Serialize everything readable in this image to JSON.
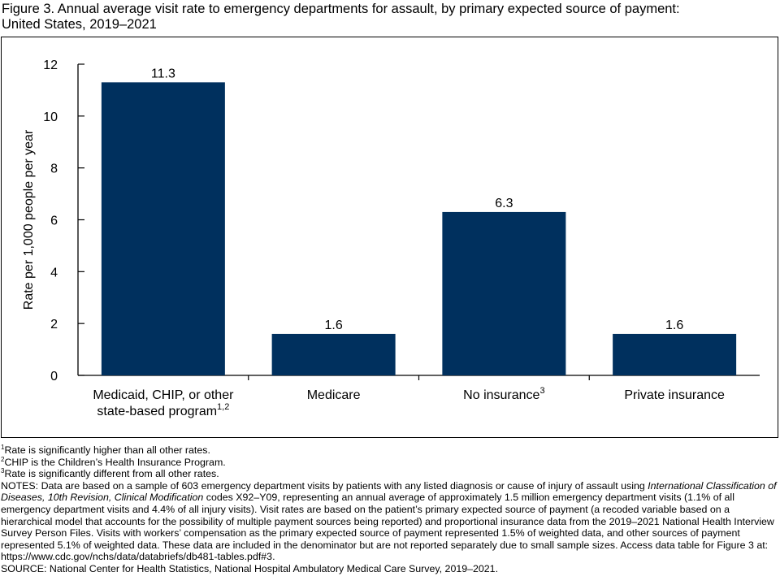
{
  "figure": {
    "title_line1": "Figure 3. Annual average visit rate to emergency departments for assault, by primary expected source of payment:",
    "title_line2": "United States, 2019–2021"
  },
  "colors": {
    "bar": "#00305E",
    "axis": "#000000"
  },
  "chart_data": {
    "type": "bar",
    "ylabel": "Rate per 1,000 people per year",
    "ylim": [
      0,
      12
    ],
    "yticks": [
      0,
      2,
      4,
      6,
      8,
      10,
      12
    ],
    "categories": [
      {
        "line1": "Medicaid, CHIP, or other",
        "line2": "state-based program",
        "sup": "1,2"
      },
      {
        "line1": "Medicare",
        "line2": "",
        "sup": ""
      },
      {
        "line1": "No insurance",
        "line2": "",
        "sup": "3"
      },
      {
        "line1": "Private insurance",
        "line2": "",
        "sup": ""
      }
    ],
    "values": [
      11.3,
      1.6,
      6.3,
      1.6
    ],
    "data_labels": [
      "11.3",
      "1.6",
      "6.3",
      "1.6"
    ],
    "grid": false,
    "legend": "none"
  },
  "footnotes": {
    "n1": {
      "mark": "1",
      "text": "Rate is significantly higher than all other rates."
    },
    "n2": {
      "mark": "2",
      "text": "CHIP is the Children’s Health Insurance Program."
    },
    "n3": {
      "mark": "3",
      "text": "Rate is significantly different from all other rates."
    },
    "notes": {
      "part1": "NOTES: Data are based on a sample of 603 emergency department visits by patients with any listed diagnosis or cause of injury of assault using ",
      "italic": "International Classification of Diseases, 10th Revision, Clinical Modification",
      "part2": " codes X92–Y09, representing an annual average of approximately 1.5 million emergency department visits (1.1% of all emergency department visits and 4.4% of all injury visits). Visit rates are based on the patient’s primary expected source of payment (a recoded variable based on a hierarchical model that accounts for the possibility of multiple payment sources being reported) and proportional insurance data from the 2019–2021 National Health Interview Survey Person Files. Visits with workers’ compensation as the primary expected source of payment represented 1.5% of weighted data, and other sources of payment represented 5.1% of weighted data. These data are included in the denominator but are not reported separately due to small sample sizes. Access data table for Figure 3 at: https://www.cdc.gov/nchs/data/databriefs/db481-tables.pdf#3."
    },
    "source": "SOURCE: National Center for Health Statistics, National Hospital Ambulatory Medical Care Survey, 2019–2021."
  }
}
